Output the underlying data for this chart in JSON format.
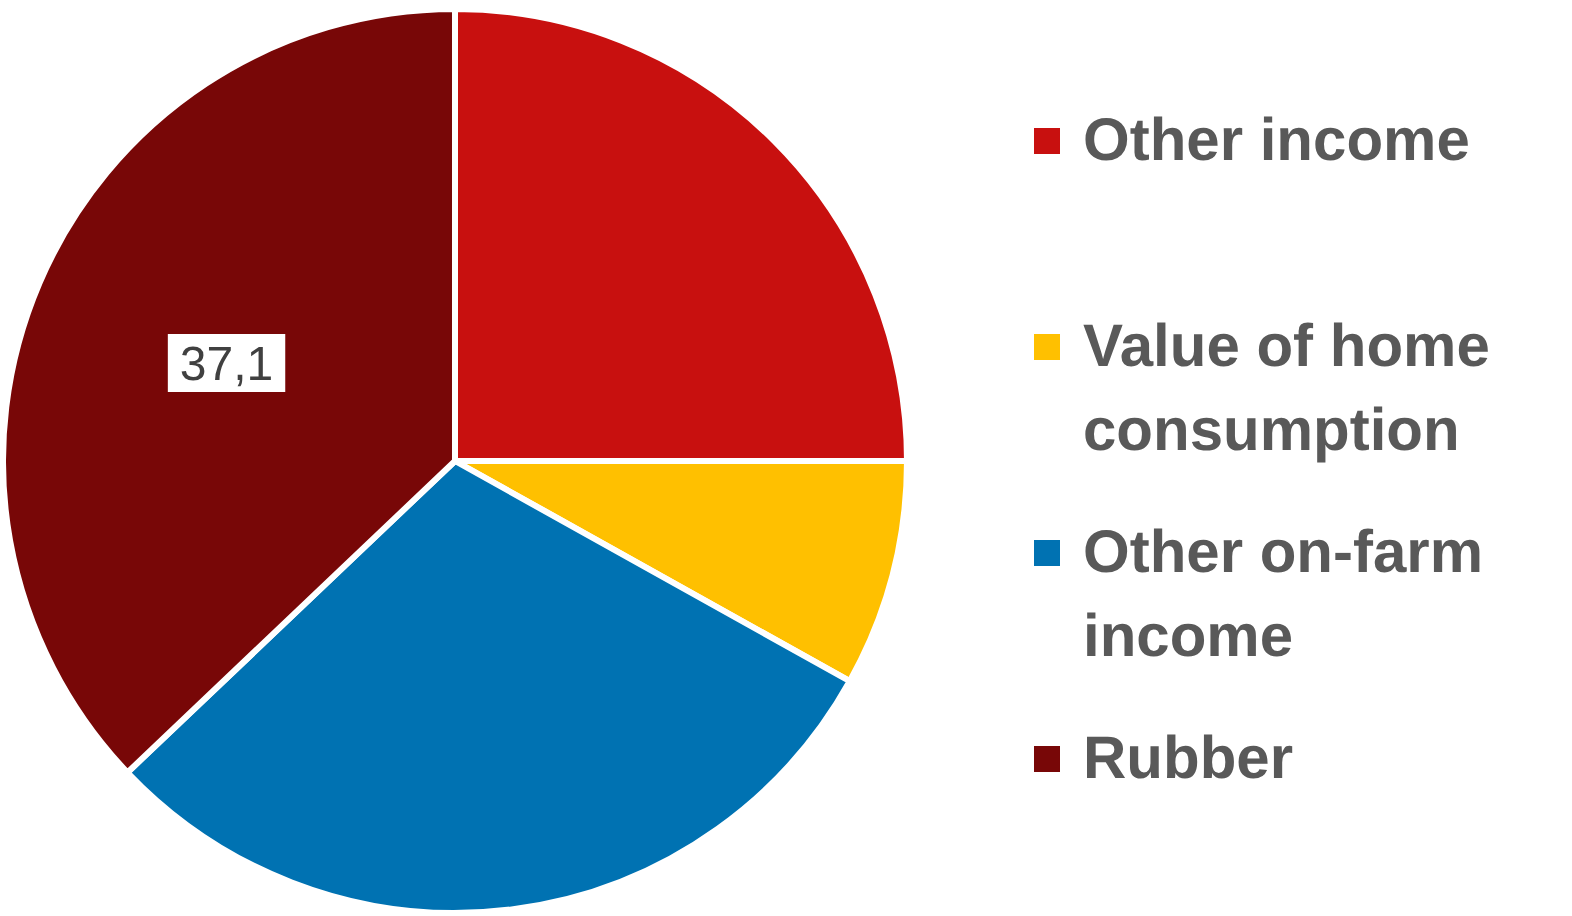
{
  "chart_data": {
    "type": "pie",
    "categories": [
      "Other income",
      "Value of home consumption",
      "Other on-farm income",
      "Rubber"
    ],
    "values": [
      25.0,
      8.1,
      29.8,
      37.1
    ],
    "colors": [
      "#c8100f",
      "#ffc000",
      "#0072b2",
      "#780707"
    ],
    "value_labels": [
      null,
      null,
      null,
      "37,1"
    ],
    "legend": "right"
  }
}
